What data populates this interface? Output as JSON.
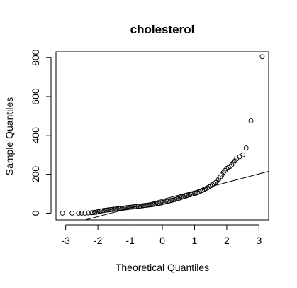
{
  "chart_data": {
    "type": "scatter",
    "title": "cholesterol",
    "xlabel": "Theoretical Quantiles",
    "ylabel": "Sample Quantiles",
    "xlim": [
      -3.3,
      3.3
    ],
    "ylim": [
      -35,
      830
    ],
    "x_ticks": [
      -3,
      -2,
      -1,
      0,
      1,
      2,
      3
    ],
    "x_tick_labels": [
      "-3",
      "-2",
      "-1",
      "0",
      "1",
      "2",
      "3"
    ],
    "y_ticks": [
      0,
      200,
      400,
      600,
      800
    ],
    "y_tick_labels": [
      "0",
      "200",
      "400",
      "600",
      "800"
    ],
    "grid": false,
    "legend": "none",
    "reference_line": {
      "x": [
        -3.3,
        3.3
      ],
      "y": [
        -75,
        215
      ]
    },
    "series": [
      {
        "marker": "open-circle",
        "points": [
          [
            -3.1,
            0
          ],
          [
            -2.8,
            0
          ],
          [
            -2.6,
            0
          ],
          [
            -2.5,
            0
          ],
          [
            -2.4,
            0
          ],
          [
            -2.3,
            1
          ],
          [
            -2.2,
            2
          ],
          [
            -2.15,
            3
          ],
          [
            -2.1,
            4
          ],
          [
            -2.05,
            5
          ],
          [
            -2.0,
            7
          ],
          [
            -1.95,
            9
          ],
          [
            -1.9,
            11
          ],
          [
            -1.85,
            12
          ],
          [
            -1.8,
            14
          ],
          [
            -1.75,
            15
          ],
          [
            -1.7,
            16
          ],
          [
            -1.65,
            17
          ],
          [
            -1.6,
            18
          ],
          [
            -1.55,
            19
          ],
          [
            -1.5,
            20
          ],
          [
            -1.45,
            21
          ],
          [
            -1.4,
            22
          ],
          [
            -1.35,
            23
          ],
          [
            -1.3,
            24
          ],
          [
            -1.25,
            25
          ],
          [
            -1.2,
            26
          ],
          [
            -1.15,
            27
          ],
          [
            -1.1,
            28
          ],
          [
            -1.05,
            29
          ],
          [
            -1.0,
            30
          ],
          [
            -0.95,
            31
          ],
          [
            -0.9,
            32
          ],
          [
            -0.85,
            33
          ],
          [
            -0.8,
            34
          ],
          [
            -0.75,
            35
          ],
          [
            -0.7,
            36
          ],
          [
            -0.65,
            37
          ],
          [
            -0.6,
            38
          ],
          [
            -0.55,
            39
          ],
          [
            -0.5,
            40
          ],
          [
            -0.45,
            41
          ],
          [
            -0.4,
            42
          ],
          [
            -0.35,
            43
          ],
          [
            -0.3,
            44
          ],
          [
            -0.25,
            45
          ],
          [
            -0.2,
            47
          ],
          [
            -0.15,
            48
          ],
          [
            -0.1,
            50
          ],
          [
            -0.05,
            52
          ],
          [
            0.0,
            54
          ],
          [
            0.05,
            56
          ],
          [
            0.1,
            58
          ],
          [
            0.15,
            60
          ],
          [
            0.2,
            62
          ],
          [
            0.25,
            64
          ],
          [
            0.3,
            66
          ],
          [
            0.35,
            68
          ],
          [
            0.4,
            70
          ],
          [
            0.45,
            72
          ],
          [
            0.5,
            75
          ],
          [
            0.55,
            78
          ],
          [
            0.6,
            81
          ],
          [
            0.65,
            84
          ],
          [
            0.7,
            87
          ],
          [
            0.75,
            89
          ],
          [
            0.8,
            92
          ],
          [
            0.85,
            94
          ],
          [
            0.9,
            96
          ],
          [
            0.95,
            98
          ],
          [
            1.0,
            100
          ],
          [
            1.05,
            103
          ],
          [
            1.1,
            106
          ],
          [
            1.15,
            110
          ],
          [
            1.2,
            114
          ],
          [
            1.25,
            118
          ],
          [
            1.3,
            122
          ],
          [
            1.35,
            126
          ],
          [
            1.4,
            130
          ],
          [
            1.45,
            135
          ],
          [
            1.5,
            140
          ],
          [
            1.55,
            145
          ],
          [
            1.6,
            151
          ],
          [
            1.65,
            157
          ],
          [
            1.7,
            165
          ],
          [
            1.75,
            175
          ],
          [
            1.8,
            186
          ],
          [
            1.85,
            197
          ],
          [
            1.9,
            210
          ],
          [
            1.95,
            220
          ],
          [
            2.0,
            230
          ],
          [
            2.05,
            234
          ],
          [
            2.1,
            240
          ],
          [
            2.15,
            248
          ],
          [
            2.2,
            258
          ],
          [
            2.25,
            268
          ],
          [
            2.3,
            278
          ],
          [
            2.4,
            290
          ],
          [
            2.5,
            300
          ],
          [
            2.6,
            335
          ],
          [
            2.75,
            475
          ],
          [
            3.1,
            805
          ]
        ]
      }
    ]
  }
}
